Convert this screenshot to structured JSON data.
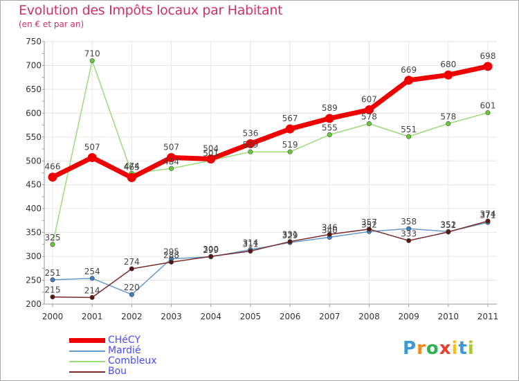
{
  "title": "Evolution des Impôts locaux par Habitant",
  "subtitle": "(en € et par an)",
  "brand": {
    "letters": [
      "P",
      "r",
      "o",
      "x",
      "i",
      "t",
      "i"
    ],
    "colors": [
      "#3a9ad9",
      "#f08a1c",
      "#2cb24a",
      "#e8412c",
      "#f6c11a",
      "#3a9ad9",
      "#a7c93a"
    ]
  },
  "chart_data": {
    "type": "line",
    "title": "Evolution des Impôts locaux par Habitant",
    "subtitle": "(en € et par an)",
    "xlabel": "",
    "ylabel": "",
    "categories": [
      "2000",
      "2001",
      "2002",
      "2003",
      "2004",
      "2005",
      "2006",
      "2007",
      "2008",
      "2009",
      "2010",
      "2011"
    ],
    "ylim": [
      200,
      750
    ],
    "yticks": [
      200,
      250,
      300,
      350,
      400,
      450,
      500,
      550,
      600,
      650,
      700,
      750
    ],
    "series": [
      {
        "name": "CHéCY",
        "color": "#ee0000",
        "values": [
          466,
          507,
          465,
          507,
          504,
          536,
          567,
          589,
          607,
          669,
          680,
          698
        ]
      },
      {
        "name": "Mardié",
        "color": "#6699cc",
        "values": [
          251,
          254,
          220,
          295,
          299,
          314,
          329,
          340,
          352,
          358,
          352,
          371
        ]
      },
      {
        "name": "Combleux",
        "color": "#99dd77",
        "values": [
          325,
          710,
          474,
          484,
          501,
          519,
          519,
          555,
          578,
          551,
          578,
          601
        ]
      },
      {
        "name": "Bou",
        "color": "#7a2a2a",
        "values": [
          215,
          214,
          274,
          288,
          300,
          311,
          331,
          346,
          357,
          333,
          351,
          374
        ]
      }
    ]
  }
}
